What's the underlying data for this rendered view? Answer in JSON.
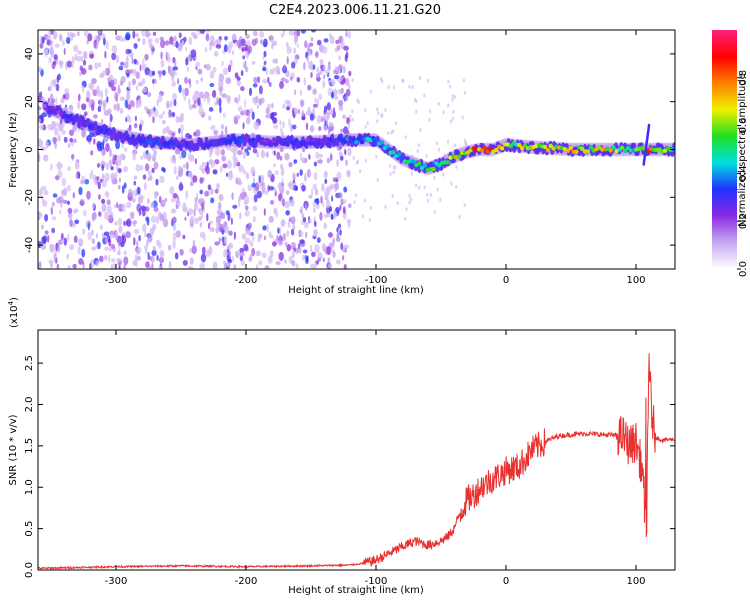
{
  "title": "C2E4.2023.006.11.21.G20",
  "colors": {
    "snr_line": "#e8312f",
    "axis": "#000000",
    "background": "#ffffff"
  },
  "chart_data": [
    {
      "type": "heatmap",
      "xlabel": "Height of straight line (km)",
      "ylabel": "Frequency (Hz)",
      "xlim": [
        -360,
        130
      ],
      "ylim": [
        -50,
        50
      ],
      "x_ticks": [
        -300,
        -200,
        -100,
        0,
        100
      ],
      "x_tick_labels": [
        "-300",
        "-200",
        "-100",
        "0",
        "100"
      ],
      "y_ticks": [
        -40,
        -20,
        0,
        20,
        40
      ],
      "y_tick_labels": [
        "-40",
        "-20",
        "0",
        "20",
        "40"
      ],
      "colorbar": {
        "label": "Normalized spectral amplitude",
        "range": [
          0,
          1
        ],
        "ticks": [
          0.0,
          0.2,
          0.4,
          0.6,
          0.8
        ],
        "tick_labels": [
          "0.0",
          "0.2",
          "0.4",
          "0.6",
          "0.8"
        ],
        "colormap": [
          "#ffffff",
          "#c8a8f0",
          "#8a2be2",
          "#2030ff",
          "#00e0e0",
          "#20e020",
          "#f0f000",
          "#ff8000",
          "#ff0000",
          "#ff2080"
        ]
      },
      "ridge": {
        "x": [
          -355,
          -330,
          -300,
          -270,
          -240,
          -210,
          -180,
          -150,
          -120,
          -100,
          -90,
          -80,
          -70,
          -60,
          -50,
          -40,
          -30,
          -20,
          -10,
          0,
          20,
          50,
          80,
          100,
          110,
          130
        ],
        "y": [
          18,
          12,
          6,
          3,
          2,
          4,
          3,
          3,
          4,
          4,
          0,
          -4,
          -6,
          -8,
          -6,
          -3,
          -1,
          0,
          0,
          2,
          1,
          0,
          0,
          0,
          0,
          0
        ],
        "amplitude": [
          0.25,
          0.3,
          0.3,
          0.35,
          0.3,
          0.35,
          0.3,
          0.3,
          0.4,
          0.45,
          0.5,
          0.5,
          0.5,
          0.55,
          0.6,
          0.7,
          0.75,
          0.85,
          0.8,
          0.6,
          0.7,
          0.75,
          0.7,
          0.55,
          0.85,
          0.5
        ]
      },
      "spike": {
        "x": 108,
        "y_range": [
          -6,
          10
        ]
      }
    },
    {
      "type": "line",
      "xlabel": "Height of straight line (km)",
      "ylabel": "SNR (10 * v/v)",
      "y_scale_label": "(x10",
      "y_scale_exponent": "4",
      "y_scale_close": ")",
      "xlim": [
        -360,
        130
      ],
      "ylim": [
        0,
        2.9
      ],
      "x_ticks": [
        -300,
        -200,
        -100,
        0,
        100
      ],
      "x_tick_labels": [
        "-300",
        "-200",
        "-100",
        "0",
        "100"
      ],
      "y_ticks": [
        0.0,
        0.5,
        1.0,
        1.5,
        2.0,
        2.5
      ],
      "y_tick_labels": [
        "0.0",
        "0.5",
        "1.0",
        "1.5",
        "2.0",
        "2.5"
      ],
      "series": [
        {
          "x": [
            -360,
            -300,
            -250,
            -200,
            -150,
            -120,
            -110,
            -100,
            -90,
            -80,
            -70,
            -60,
            -50,
            -45,
            -40,
            -35,
            -30,
            -25,
            -20,
            -10,
            0,
            10,
            20,
            30,
            40,
            60,
            80,
            90,
            95,
            100,
            105,
            108,
            110,
            112,
            115,
            120,
            130
          ],
          "y": [
            0.02,
            0.04,
            0.05,
            0.04,
            0.05,
            0.06,
            0.08,
            0.12,
            0.2,
            0.28,
            0.35,
            0.3,
            0.35,
            0.4,
            0.5,
            0.7,
            0.85,
            0.9,
            1.0,
            1.1,
            1.2,
            1.25,
            1.45,
            1.55,
            1.62,
            1.65,
            1.63,
            1.62,
            1.5,
            1.55,
            1.2,
            0.3,
            2.6,
            1.9,
            1.6,
            1.57,
            1.58
          ]
        }
      ]
    }
  ]
}
